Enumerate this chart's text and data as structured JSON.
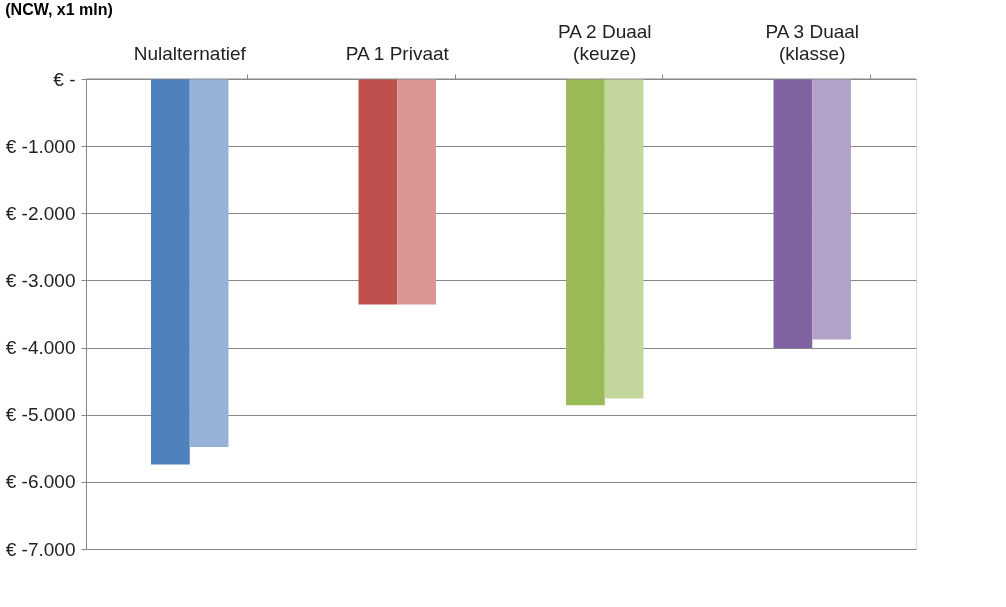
{
  "chart_data": {
    "type": "bar",
    "title": "(NCW, x1 mln)",
    "categories": [
      "Nulalternatief",
      "PA 1 Privaat",
      "PA 2 Duaal\n(keuze)",
      "PA 3 Duaal\n(klasse)"
    ],
    "series": [
      {
        "colors": [
          "#4f81bd",
          "#c0504d",
          "#9bbb59",
          "#8064a2"
        ],
        "values": [
          -5740,
          -3360,
          -4860,
          -4010
        ]
      },
      {
        "colors": [
          "#95b3d7",
          "#d99694",
          "#c3d69b",
          "#b2a2c7"
        ],
        "values": [
          -5480,
          -3360,
          -4760,
          -3880
        ]
      }
    ],
    "ylim": [
      -7000,
      0
    ],
    "yticks": [
      {
        "value": 0,
        "label": "€ -"
      },
      {
        "value": -1000,
        "label": "€ -1.000"
      },
      {
        "value": -2000,
        "label": "€ -2.000"
      },
      {
        "value": -3000,
        "label": "€ -3.000"
      },
      {
        "value": -4000,
        "label": "€ -4.000"
      },
      {
        "value": -5000,
        "label": "€ -5.000"
      },
      {
        "value": -6000,
        "label": "€ -6.000"
      },
      {
        "value": -7000,
        "label": "€ -7.000"
      }
    ],
    "grid": "y"
  }
}
